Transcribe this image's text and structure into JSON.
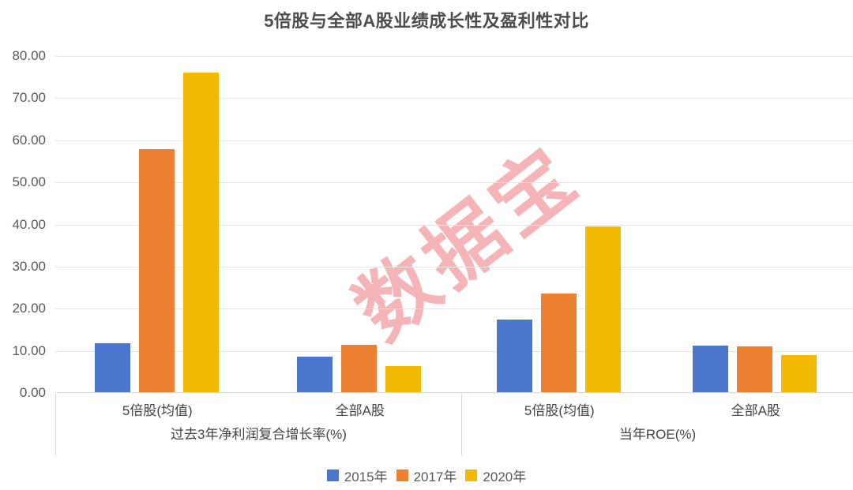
{
  "title": "5倍股与全部A股业绩成长性及盈利性对比",
  "watermark": "数据宝",
  "colors": {
    "series_2015": "#4A76CB",
    "series_2017": "#ED8132",
    "series_2020": "#F2BA02",
    "watermark_pink": "rgba(231,78,86,0.42)",
    "title_text": "#4D4D4D",
    "axis_text": "#595959",
    "category_text": "#434343",
    "gridline": "#E4E4E4",
    "axis_line": "#D6D6D6"
  },
  "chart_data": {
    "type": "bar",
    "title": "5倍股与全部A股业绩成长性及盈利性对比",
    "ylim": [
      0,
      80
    ],
    "y_tick_step": 10,
    "y_tick_labels": [
      "80.00",
      "70.00",
      "60.00",
      "50.00",
      "40.00",
      "30.00",
      "20.00",
      "10.00",
      "0.00"
    ],
    "grid": true,
    "legend_position": "bottom",
    "watermark": "数据宝",
    "groups": [
      {
        "label": "过去3年净利润复合增长率(%)",
        "categories": [
          "5倍股(均值)",
          "全部A股"
        ]
      },
      {
        "label": "当年ROE(%)",
        "categories": [
          "5倍股(均值)",
          "全部A股"
        ]
      }
    ],
    "series": [
      {
        "name": "2015年",
        "color": "#4A76CB",
        "values": [
          11.6,
          8.4,
          17.2,
          11.0
        ]
      },
      {
        "name": "2017年",
        "color": "#ED8132",
        "values": [
          57.7,
          11.2,
          23.4,
          10.9
        ]
      },
      {
        "name": "2020年",
        "color": "#F2BA02",
        "values": [
          75.8,
          6.1,
          39.3,
          8.9
        ]
      }
    ]
  }
}
